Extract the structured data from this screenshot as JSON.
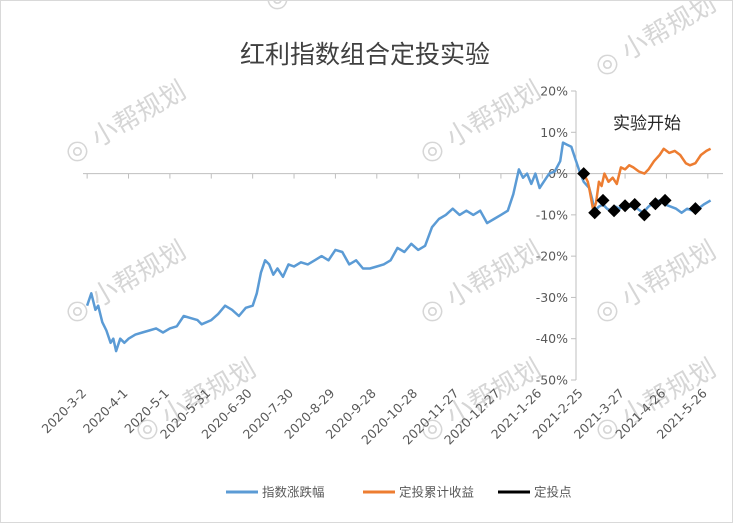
{
  "chart_data": {
    "type": "line",
    "title": "红利指数组合定投实验",
    "annotation": "实验开始",
    "watermark": "小帮规划",
    "xlabel": "",
    "ylabel": "",
    "ylim": [
      -0.5,
      0.2
    ],
    "y_ticks": [
      0.2,
      0.1,
      0,
      -0.1,
      -0.2,
      -0.3,
      -0.4,
      -0.5
    ],
    "y_tick_labels": [
      "20%",
      "10%",
      "0%",
      "-10%",
      "-20%",
      "-30%",
      "-40%",
      "-50%"
    ],
    "x_ticks": [
      "2020-3-2",
      "2020-4-1",
      "2020-5-1",
      "2020-5-31",
      "2020-6-30",
      "2020-7-30",
      "2020-8-29",
      "2020-9-28",
      "2020-10-28",
      "2020-11-27",
      "2020-12-27",
      "2021-1-26",
      "2021-2-25",
      "2021-3-27",
      "2021-4-26",
      "2021-5-26"
    ],
    "x_range": [
      "2020-2-28",
      "2021-6-6"
    ],
    "grid": false,
    "legend_position": "bottom",
    "colors": {
      "index": "#5b9bd5",
      "cumulative": "#ed7d31",
      "points": "#000000"
    },
    "series": [
      {
        "name": "指数涨跌幅",
        "type": "line",
        "points": [
          [
            "2020-3-2",
            -0.32
          ],
          [
            "2020-3-5",
            -0.29
          ],
          [
            "2020-3-8",
            -0.33
          ],
          [
            "2020-3-10",
            -0.32
          ],
          [
            "2020-3-13",
            -0.36
          ],
          [
            "2020-3-16",
            -0.38
          ],
          [
            "2020-3-19",
            -0.41
          ],
          [
            "2020-3-21",
            -0.4
          ],
          [
            "2020-3-23",
            -0.43
          ],
          [
            "2020-3-26",
            -0.4
          ],
          [
            "2020-3-29",
            -0.41
          ],
          [
            "2020-4-1",
            -0.4
          ],
          [
            "2020-4-6",
            -0.39
          ],
          [
            "2020-4-11",
            -0.385
          ],
          [
            "2020-4-16",
            -0.38
          ],
          [
            "2020-4-21",
            -0.375
          ],
          [
            "2020-4-26",
            -0.385
          ],
          [
            "2020-5-1",
            -0.375
          ],
          [
            "2020-5-6",
            -0.37
          ],
          [
            "2020-5-11",
            -0.345
          ],
          [
            "2020-5-16",
            -0.35
          ],
          [
            "2020-5-21",
            -0.355
          ],
          [
            "2020-5-24",
            -0.365
          ],
          [
            "2020-5-31",
            -0.355
          ],
          [
            "2020-6-5",
            -0.34
          ],
          [
            "2020-6-10",
            -0.32
          ],
          [
            "2020-6-15",
            -0.33
          ],
          [
            "2020-6-20",
            -0.345
          ],
          [
            "2020-6-25",
            -0.325
          ],
          [
            "2020-6-30",
            -0.32
          ],
          [
            "2020-7-3",
            -0.29
          ],
          [
            "2020-7-6",
            -0.24
          ],
          [
            "2020-7-9",
            -0.21
          ],
          [
            "2020-7-12",
            -0.22
          ],
          [
            "2020-7-15",
            -0.245
          ],
          [
            "2020-7-18",
            -0.23
          ],
          [
            "2020-7-22",
            -0.25
          ],
          [
            "2020-7-26",
            -0.22
          ],
          [
            "2020-7-30",
            -0.225
          ],
          [
            "2020-8-4",
            -0.215
          ],
          [
            "2020-8-9",
            -0.22
          ],
          [
            "2020-8-14",
            -0.21
          ],
          [
            "2020-8-19",
            -0.2
          ],
          [
            "2020-8-24",
            -0.21
          ],
          [
            "2020-8-29",
            -0.185
          ],
          [
            "2020-9-3",
            -0.19
          ],
          [
            "2020-9-8",
            -0.22
          ],
          [
            "2020-9-13",
            -0.21
          ],
          [
            "2020-9-18",
            -0.23
          ],
          [
            "2020-9-23",
            -0.23
          ],
          [
            "2020-9-28",
            -0.225
          ],
          [
            "2020-10-3",
            -0.22
          ],
          [
            "2020-10-8",
            -0.21
          ],
          [
            "2020-10-13",
            -0.18
          ],
          [
            "2020-10-18",
            -0.19
          ],
          [
            "2020-10-23",
            -0.17
          ],
          [
            "2020-10-28",
            -0.185
          ],
          [
            "2020-11-2",
            -0.175
          ],
          [
            "2020-11-7",
            -0.13
          ],
          [
            "2020-11-12",
            -0.11
          ],
          [
            "2020-11-17",
            -0.1
          ],
          [
            "2020-11-22",
            -0.085
          ],
          [
            "2020-11-27",
            -0.1
          ],
          [
            "2020-12-2",
            -0.09
          ],
          [
            "2020-12-7",
            -0.1
          ],
          [
            "2020-12-12",
            -0.09
          ],
          [
            "2020-12-17",
            -0.12
          ],
          [
            "2020-12-22",
            -0.11
          ],
          [
            "2020-12-27",
            -0.1
          ],
          [
            "2021-1-1",
            -0.09
          ],
          [
            "2021-1-5",
            -0.05
          ],
          [
            "2021-1-9",
            0.01
          ],
          [
            "2021-1-12",
            -0.01
          ],
          [
            "2021-1-15",
            0.0
          ],
          [
            "2021-1-18",
            -0.025
          ],
          [
            "2021-1-21",
            -0.0
          ],
          [
            "2021-1-24",
            -0.035
          ],
          [
            "2021-1-27",
            -0.02
          ],
          [
            "2021-1-31",
            0.0
          ],
          [
            "2021-2-4",
            0.005
          ],
          [
            "2021-2-8",
            0.03
          ],
          [
            "2021-2-10",
            0.075
          ],
          [
            "2021-2-13",
            0.07
          ],
          [
            "2021-2-16",
            0.065
          ],
          [
            "2021-2-19",
            0.035
          ],
          [
            "2021-2-22",
            0.005
          ],
          [
            "2021-2-25",
            -0.02
          ],
          [
            "2021-3-1",
            -0.035
          ],
          [
            "2021-3-3",
            -0.06
          ],
          [
            "2021-3-5",
            -0.09
          ],
          [
            "2021-3-8",
            -0.08
          ],
          [
            "2021-3-11",
            -0.075
          ],
          [
            "2021-3-14",
            -0.085
          ],
          [
            "2021-3-17",
            -0.09
          ],
          [
            "2021-3-20",
            -0.08
          ],
          [
            "2021-3-23",
            -0.085
          ],
          [
            "2021-3-26",
            -0.075
          ],
          [
            "2021-3-29",
            -0.08
          ],
          [
            "2021-4-1",
            -0.08
          ],
          [
            "2021-4-5",
            -0.085
          ],
          [
            "2021-4-9",
            -0.095
          ],
          [
            "2021-4-13",
            -0.08
          ],
          [
            "2021-4-17",
            -0.07
          ],
          [
            "2021-4-21",
            -0.065
          ],
          [
            "2021-4-25",
            -0.075
          ],
          [
            "2021-4-29",
            -0.08
          ],
          [
            "2021-5-3",
            -0.085
          ],
          [
            "2021-5-7",
            -0.095
          ],
          [
            "2021-5-11",
            -0.085
          ],
          [
            "2021-5-15",
            -0.09
          ],
          [
            "2021-5-19",
            -0.085
          ],
          [
            "2021-5-23",
            -0.075
          ],
          [
            "2021-5-28",
            -0.065
          ]
        ]
      },
      {
        "name": "定投累计收益",
        "type": "line",
        "points": [
          [
            "2021-2-25",
            0.0
          ],
          [
            "2021-2-28",
            -0.02
          ],
          [
            "2021-3-1",
            -0.035
          ],
          [
            "2021-3-4",
            -0.09
          ],
          [
            "2021-3-6",
            -0.07
          ],
          [
            "2021-3-8",
            -0.02
          ],
          [
            "2021-3-10",
            -0.03
          ],
          [
            "2021-3-12",
            0.0
          ],
          [
            "2021-3-15",
            -0.02
          ],
          [
            "2021-3-18",
            -0.01
          ],
          [
            "2021-3-21",
            -0.025
          ],
          [
            "2021-3-24",
            0.015
          ],
          [
            "2021-3-27",
            0.01
          ],
          [
            "2021-3-30",
            0.02
          ],
          [
            "2021-4-2",
            0.015
          ],
          [
            "2021-4-6",
            0.005
          ],
          [
            "2021-4-10",
            0.0
          ],
          [
            "2021-4-13",
            0.01
          ],
          [
            "2021-4-17",
            0.03
          ],
          [
            "2021-4-21",
            0.045
          ],
          [
            "2021-4-24",
            0.06
          ],
          [
            "2021-4-28",
            0.05
          ],
          [
            "2021-5-2",
            0.055
          ],
          [
            "2021-5-6",
            0.045
          ],
          [
            "2021-5-10",
            0.025
          ],
          [
            "2021-5-13",
            0.02
          ],
          [
            "2021-5-17",
            0.025
          ],
          [
            "2021-5-21",
            0.045
          ],
          [
            "2021-5-25",
            0.055
          ],
          [
            "2021-5-28",
            0.06
          ]
        ]
      },
      {
        "name": "定投点",
        "type": "scatter",
        "points": [
          [
            "2021-2-25",
            0.0
          ],
          [
            "2021-3-5",
            -0.095
          ],
          [
            "2021-3-11",
            -0.065
          ],
          [
            "2021-3-19",
            -0.09
          ],
          [
            "2021-3-27",
            -0.078
          ],
          [
            "2021-4-3",
            -0.075
          ],
          [
            "2021-4-10",
            -0.1
          ],
          [
            "2021-4-18",
            -0.073
          ],
          [
            "2021-4-25",
            -0.065
          ],
          [
            "2021-5-17",
            -0.085
          ]
        ]
      }
    ]
  }
}
